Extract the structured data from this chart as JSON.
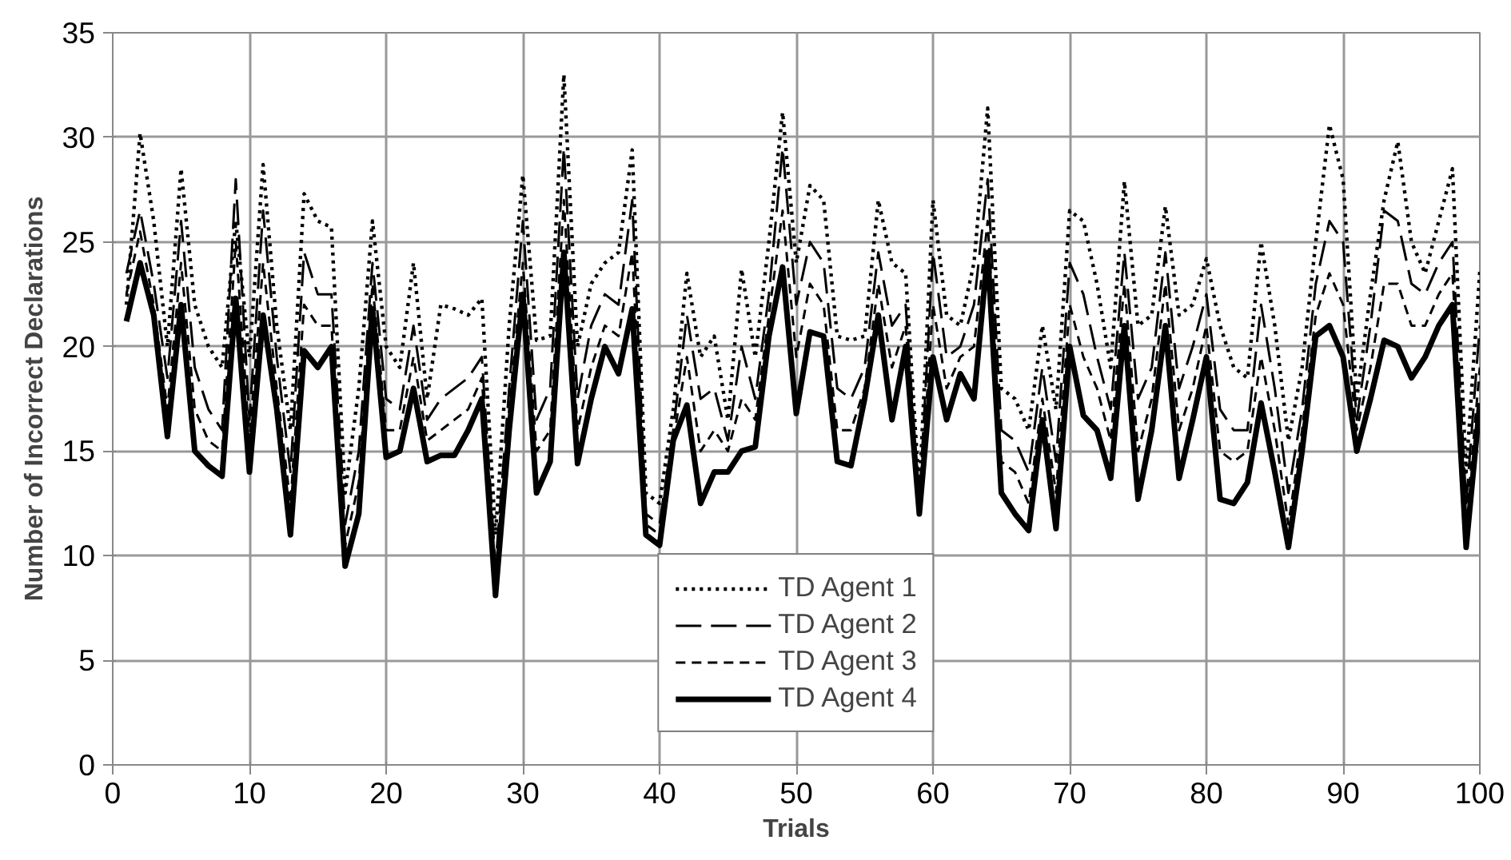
{
  "chart_data": {
    "type": "line",
    "xlabel": "Trials",
    "ylabel": "Number of Incorrect Declarations",
    "x": [
      1,
      2,
      3,
      4,
      5,
      6,
      7,
      8,
      9,
      10,
      11,
      12,
      13,
      14,
      15,
      16,
      17,
      18,
      19,
      20,
      21,
      22,
      23,
      24,
      25,
      26,
      27,
      28,
      29,
      30,
      31,
      32,
      33,
      34,
      35,
      36,
      37,
      38,
      39,
      40,
      41,
      42,
      43,
      44,
      45,
      46,
      47,
      48,
      49,
      50,
      51,
      52,
      53,
      54,
      55,
      56,
      57,
      58,
      59,
      60,
      61,
      62,
      63,
      64,
      65,
      66,
      67,
      68,
      69,
      70,
      71,
      72,
      73,
      74,
      75,
      76,
      77,
      78,
      79,
      80,
      81,
      82,
      83,
      84,
      85,
      86,
      87,
      88,
      89,
      90,
      91,
      92,
      93,
      94,
      95,
      96,
      97,
      98,
      99,
      100
    ],
    "xlim": [
      0,
      100
    ],
    "xticks": [
      0,
      10,
      20,
      30,
      40,
      50,
      60,
      70,
      80,
      90,
      100
    ],
    "ylim": [
      0,
      35
    ],
    "yticks": [
      0,
      5,
      10,
      15,
      20,
      25,
      30,
      35
    ],
    "grid": true,
    "legend": "bottom",
    "series": [
      {
        "name": "TD Agent 1",
        "color": "#000000",
        "line_style": "dotted",
        "values": [
          22,
          30.2,
          26,
          20,
          28.5,
          22,
          20,
          19,
          26,
          19.5,
          28.7,
          21,
          16,
          27.3,
          26,
          25.7,
          13,
          18,
          26,
          20,
          19,
          24,
          17.5,
          22,
          21.8,
          21.5,
          22.3,
          11,
          21,
          28.2,
          20.3,
          20.5,
          33,
          20,
          23,
          24,
          24.5,
          29.4,
          13,
          12.5,
          17,
          23.5,
          19.5,
          20.5,
          16.5,
          23.7,
          19.5,
          25,
          31.2,
          24,
          27.7,
          27,
          20.5,
          20.3,
          20.5,
          27,
          24,
          23.5,
          13,
          27,
          21.5,
          21,
          24,
          31.4,
          18,
          17.5,
          16,
          21,
          17,
          26.5,
          26,
          23,
          19,
          27.9,
          21,
          21.5,
          26.7,
          21.5,
          22,
          24.2,
          21,
          19,
          18.5,
          25,
          21,
          15.5,
          19,
          25,
          30.6,
          28,
          17.5,
          22.5,
          27,
          29.8,
          25,
          23.5,
          26,
          28.5,
          14,
          23.6
        ]
      },
      {
        "name": "TD Agent 2",
        "color": "#000000",
        "line_style": "longdash",
        "values": [
          23.5,
          26.5,
          23,
          18.5,
          26,
          19,
          17,
          16,
          28,
          16.5,
          26.5,
          19.5,
          14,
          24.5,
          22.5,
          22.5,
          11.5,
          15,
          24,
          17.5,
          17,
          21,
          16.5,
          17.5,
          18,
          18.5,
          19.5,
          9.5,
          18,
          26,
          16.5,
          18,
          29.5,
          17.5,
          21,
          22.5,
          22,
          27,
          12,
          11.5,
          16,
          21.5,
          17.5,
          18,
          15.5,
          20,
          17.5,
          22.5,
          29.5,
          22,
          25,
          24,
          18,
          17.5,
          19,
          24.5,
          21,
          22,
          12.5,
          24.5,
          19.5,
          20,
          22,
          28,
          16,
          15.5,
          14,
          19,
          14.5,
          24,
          22.5,
          19.5,
          17,
          24.5,
          17.5,
          19,
          24.5,
          18,
          20,
          22.5,
          17,
          16,
          16,
          22,
          18,
          13,
          17,
          23,
          26,
          25,
          16.5,
          21,
          26.5,
          26,
          23,
          22.5,
          24,
          25,
          12.5,
          21
        ]
      },
      {
        "name": "TD Agent 3",
        "color": "#000000",
        "line_style": "dashed",
        "values": [
          22.5,
          25.5,
          22,
          17,
          24,
          17,
          15.5,
          15,
          25,
          15.5,
          24,
          18,
          12.5,
          22,
          21,
          21,
          10.5,
          13.5,
          23,
          16,
          16,
          19.5,
          15.5,
          16,
          16.5,
          17,
          18.5,
          9,
          17,
          24,
          15,
          16,
          27,
          16,
          19,
          21,
          20.5,
          24.5,
          11.5,
          11,
          15.5,
          19.5,
          15,
          16,
          15,
          17.5,
          16.5,
          21.5,
          26.5,
          19.5,
          23,
          22,
          16,
          16,
          18,
          23,
          19,
          21,
          12,
          22,
          18,
          19.5,
          20,
          26,
          14.5,
          14,
          12.5,
          17.5,
          13,
          22,
          19.5,
          18,
          15.5,
          23,
          15,
          17.5,
          23,
          16,
          18,
          21,
          15,
          14.5,
          15,
          19.5,
          16,
          11.5,
          16,
          21.5,
          23.5,
          22,
          16,
          19,
          23,
          23,
          21,
          21,
          22.5,
          23.5,
          11.5,
          19
        ]
      },
      {
        "name": "TD Agent 4",
        "color": "#000000",
        "line_style": "solid",
        "values": [
          21.2,
          24,
          21.5,
          15.7,
          22,
          15,
          14.3,
          13.8,
          22.3,
          14,
          21.5,
          17,
          11,
          19.8,
          19,
          20,
          9.5,
          12,
          21.8,
          14.7,
          15,
          18,
          14.5,
          14.8,
          14.8,
          16,
          17.5,
          8.1,
          16,
          22.5,
          13,
          14.5,
          24.5,
          14.4,
          17.5,
          20,
          18.7,
          21.8,
          11,
          10.5,
          15.5,
          17.2,
          12.5,
          14,
          14,
          15,
          15.2,
          20.5,
          23.8,
          16.8,
          20.7,
          20.5,
          14.5,
          14.3,
          17.5,
          21.5,
          16.5,
          20,
          12,
          19.5,
          16.5,
          18.7,
          17.5,
          24.5,
          13,
          12,
          11.2,
          16.5,
          11.3,
          20,
          16.7,
          16,
          13.7,
          21,
          12.7,
          16,
          21,
          13.7,
          16.5,
          19.5,
          12.7,
          12.5,
          13.5,
          17.3,
          14,
          10.4,
          15,
          20.5,
          21,
          19.5,
          15,
          17.5,
          20.3,
          20,
          18.5,
          19.5,
          21,
          22,
          10.4,
          17.3
        ]
      }
    ]
  }
}
